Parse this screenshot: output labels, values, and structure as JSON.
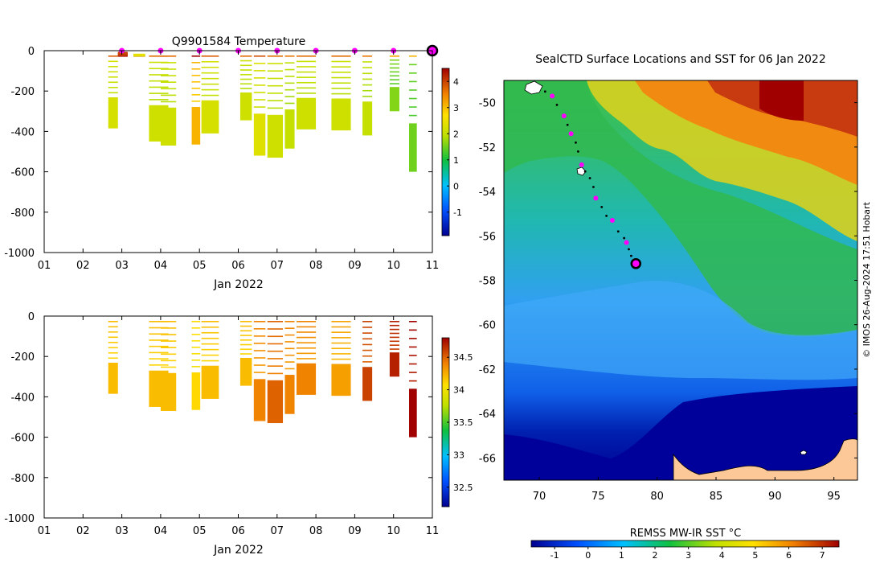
{
  "chart_data": [
    {
      "type": "heatmap",
      "panel": "temperature-profile",
      "title": "Q9901584  Temperature",
      "xlabel": "Jan 2022",
      "ylabel": "",
      "x_ticks": [
        "01",
        "02",
        "03",
        "04",
        "05",
        "06",
        "07",
        "08",
        "09",
        "10",
        "11"
      ],
      "xlim": [
        1,
        11
      ],
      "ylim": [
        -1000,
        0
      ],
      "y_ticks": [
        0,
        -200,
        -400,
        -600,
        -800,
        -1000
      ],
      "colorbar": {
        "ticks": [
          4,
          3,
          2,
          1,
          0,
          -1
        ],
        "range": [
          -1.9,
          4.5
        ]
      },
      "surface_markers_day": [
        3,
        4,
        5,
        6,
        7,
        8,
        9,
        10
      ],
      "current_marker_day": 11,
      "profiles": [
        {
          "day": 2.65,
          "width": 0.25,
          "depth": 385,
          "value": 2.2
        },
        {
          "day": 2.9,
          "width": 0.25,
          "depth": 10,
          "value": 4.2
        },
        {
          "day": 3.3,
          "width": 0.3,
          "depth": 25,
          "value": 2.4
        },
        {
          "day": 3.7,
          "width": 0.5,
          "depth": 450,
          "value": 2.1
        },
        {
          "day": 4.0,
          "width": 0.4,
          "depth": 470,
          "value": 2.1
        },
        {
          "day": 4.8,
          "width": 0.22,
          "depth": 465,
          "value": 3.1
        },
        {
          "day": 5.05,
          "width": 0.45,
          "depth": 410,
          "value": 2.2
        },
        {
          "day": 6.05,
          "width": 0.3,
          "depth": 345,
          "value": 2.1
        },
        {
          "day": 6.4,
          "width": 0.3,
          "depth": 520,
          "value": 2.3
        },
        {
          "day": 6.75,
          "width": 0.4,
          "depth": 530,
          "value": 2.1
        },
        {
          "day": 7.2,
          "width": 0.25,
          "depth": 485,
          "value": 2.0
        },
        {
          "day": 7.5,
          "width": 0.5,
          "depth": 390,
          "value": 2.1
        },
        {
          "day": 8.4,
          "width": 0.5,
          "depth": 395,
          "value": 2.1
        },
        {
          "day": 9.2,
          "width": 0.25,
          "depth": 420,
          "value": 2.0
        },
        {
          "day": 9.9,
          "width": 0.25,
          "depth": 300,
          "value": 1.6
        },
        {
          "day": 10.4,
          "width": 0.2,
          "depth": 600,
          "value": 1.5
        }
      ]
    },
    {
      "type": "heatmap",
      "panel": "salinity-profile",
      "title": "",
      "xlabel": "Jan 2022",
      "ylabel": "",
      "x_ticks": [
        "01",
        "02",
        "03",
        "04",
        "05",
        "06",
        "07",
        "08",
        "09",
        "10",
        "11"
      ],
      "xlim": [
        1,
        11
      ],
      "ylim": [
        -1000,
        0
      ],
      "y_ticks": [
        0,
        -200,
        -400,
        -600,
        -800,
        -1000
      ],
      "colorbar": {
        "ticks": [
          34.5,
          34,
          33.5,
          33,
          32.5
        ],
        "range": [
          32.2,
          34.8
        ]
      },
      "profiles": [
        {
          "day": 2.65,
          "width": 0.25,
          "depth": 385,
          "value": 34.2
        },
        {
          "day": 3.7,
          "width": 0.5,
          "depth": 450,
          "value": 34.2
        },
        {
          "day": 4.0,
          "width": 0.4,
          "depth": 470,
          "value": 34.2
        },
        {
          "day": 4.8,
          "width": 0.22,
          "depth": 465,
          "value": 34.1
        },
        {
          "day": 5.05,
          "width": 0.45,
          "depth": 410,
          "value": 34.2
        },
        {
          "day": 6.05,
          "width": 0.3,
          "depth": 345,
          "value": 34.2
        },
        {
          "day": 6.4,
          "width": 0.3,
          "depth": 520,
          "value": 34.4
        },
        {
          "day": 6.75,
          "width": 0.4,
          "depth": 530,
          "value": 34.5
        },
        {
          "day": 7.2,
          "width": 0.25,
          "depth": 485,
          "value": 34.4
        },
        {
          "day": 7.5,
          "width": 0.5,
          "depth": 390,
          "value": 34.4
        },
        {
          "day": 8.4,
          "width": 0.5,
          "depth": 395,
          "value": 34.3
        },
        {
          "day": 9.2,
          "width": 0.25,
          "depth": 420,
          "value": 34.6
        },
        {
          "day": 9.9,
          "width": 0.25,
          "depth": 300,
          "value": 34.7
        },
        {
          "day": 10.4,
          "width": 0.2,
          "depth": 600,
          "value": 34.8
        }
      ]
    },
    {
      "type": "heatmap",
      "panel": "sst-map",
      "title": "SealCTD Surface Locations and SST for 06 Jan 2022",
      "xlabel": "",
      "ylabel": "",
      "xlim": [
        67,
        97
      ],
      "ylim": [
        -67,
        -49
      ],
      "x_ticks": [
        70,
        75,
        80,
        85,
        90,
        95
      ],
      "y_ticks": [
        -50,
        -52,
        -54,
        -56,
        -58,
        -60,
        -62,
        -64,
        -66
      ],
      "colorbar_label": "REMSS MW-IR SST °C",
      "colorbar": {
        "ticks": [
          -1,
          0,
          1,
          2,
          3,
          4,
          5,
          6,
          7
        ],
        "range": [
          -1.7,
          7.5
        ]
      },
      "track": [
        {
          "lon": 70.5,
          "lat": -49.5
        },
        {
          "lon": 71.1,
          "lat": -49.7
        },
        {
          "lon": 71.5,
          "lat": -50.1
        },
        {
          "lon": 72.1,
          "lat": -50.6
        },
        {
          "lon": 72.4,
          "lat": -51.0
        },
        {
          "lon": 72.7,
          "lat": -51.4
        },
        {
          "lon": 73.1,
          "lat": -51.8
        },
        {
          "lon": 73.3,
          "lat": -52.2
        },
        {
          "lon": 73.6,
          "lat": -52.8
        },
        {
          "lon": 73.9,
          "lat": -53.1
        },
        {
          "lon": 74.3,
          "lat": -53.4
        },
        {
          "lon": 74.6,
          "lat": -53.8
        },
        {
          "lon": 74.8,
          "lat": -54.3
        },
        {
          "lon": 75.3,
          "lat": -54.7
        },
        {
          "lon": 75.7,
          "lat": -55.1
        },
        {
          "lon": 76.2,
          "lat": -55.3
        },
        {
          "lon": 76.7,
          "lat": -55.8
        },
        {
          "lon": 77.2,
          "lat": -56.1
        },
        {
          "lon": 77.4,
          "lat": -56.3
        },
        {
          "lon": 77.6,
          "lat": -56.6
        },
        {
          "lon": 77.8,
          "lat": -56.9
        },
        {
          "lon": 78.1,
          "lat": -57.2
        }
      ],
      "daily_positions": [
        {
          "lon": 71.1,
          "lat": -49.7
        },
        {
          "lon": 72.1,
          "lat": -50.6
        },
        {
          "lon": 72.7,
          "lat": -51.4
        },
        {
          "lon": 73.6,
          "lat": -52.8
        },
        {
          "lon": 74.8,
          "lat": -54.3
        },
        {
          "lon": 76.2,
          "lat": -55.3
        },
        {
          "lon": 77.4,
          "lat": -56.3
        }
      ],
      "current_position": {
        "lon": 78.2,
        "lat": -57.25
      }
    }
  ],
  "credit": "© IMOS 26-Aug-2024 17:51 Hobart"
}
